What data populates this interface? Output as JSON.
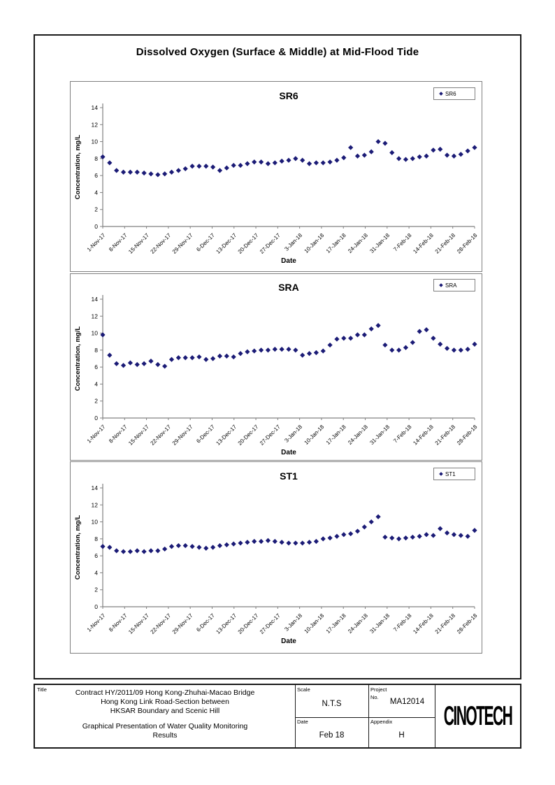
{
  "page": {
    "heading": "Dissolved Oxygen (Surface & Middle) at Mid-Flood Tide"
  },
  "chart_data": [
    {
      "type": "scatter",
      "title": "SR6",
      "legend": "SR6",
      "marker": "diamond",
      "marker_color": "#1b1b76",
      "xlabel": "Date",
      "ylabel": "Concentration, mg/L",
      "ylim": [
        0,
        14
      ],
      "y_ticks": [
        0,
        2,
        4,
        6,
        8,
        10,
        12,
        14
      ],
      "x_tick_labels": [
        "1-Nov-17",
        "8-Nov-17",
        "15-Nov-17",
        "22-Nov-17",
        "29-Nov-17",
        "6-Dec-17",
        "13-Dec-17",
        "20-Dec-17",
        "27-Dec-17",
        "3-Jan-18",
        "10-Jan-18",
        "17-Jan-18",
        "24-Jan-18",
        "31-Jan-18",
        "7-Feb-18",
        "14-Feb-18",
        "21-Feb-18",
        "28-Feb-18"
      ],
      "values": [
        8.2,
        7.5,
        6.6,
        6.4,
        6.4,
        6.4,
        6.3,
        6.2,
        6.1,
        6.2,
        6.4,
        6.6,
        6.8,
        7.1,
        7.1,
        7.1,
        7.0,
        6.6,
        6.9,
        7.2,
        7.2,
        7.4,
        7.6,
        7.6,
        7.4,
        7.5,
        7.7,
        7.8,
        8.0,
        7.8,
        7.4,
        7.5,
        7.5,
        7.6,
        7.8,
        8.1,
        9.3,
        8.3,
        8.4,
        8.8,
        10.0,
        9.8,
        8.7,
        8.0,
        7.9,
        8.0,
        8.2,
        8.3,
        9.0,
        9.1,
        8.4,
        8.3,
        8.5,
        8.9,
        9.3
      ]
    },
    {
      "type": "scatter",
      "title": "SRA",
      "legend": "SRA",
      "marker": "diamond",
      "marker_color": "#1b1b76",
      "xlabel": "Date",
      "ylabel": "Concentration, mg/L",
      "ylim": [
        0,
        14
      ],
      "y_ticks": [
        0,
        2,
        4,
        6,
        8,
        10,
        12,
        14
      ],
      "x_tick_labels": [
        "1-Nov-17",
        "8-Nov-17",
        "15-Nov-17",
        "22-Nov-17",
        "29-Nov-17",
        "6-Dec-17",
        "13-Dec-17",
        "20-Dec-17",
        "27-Dec-17",
        "3-Jan-18",
        "10-Jan-18",
        "17-Jan-18",
        "24-Jan-18",
        "31-Jan-18",
        "7-Feb-18",
        "14-Feb-18",
        "21-Feb-18",
        "28-Feb-18"
      ],
      "values": [
        9.8,
        7.4,
        6.4,
        6.2,
        6.5,
        6.3,
        6.4,
        6.7,
        6.3,
        6.1,
        6.9,
        7.1,
        7.1,
        7.1,
        7.2,
        6.9,
        7.0,
        7.3,
        7.3,
        7.2,
        7.6,
        7.8,
        7.9,
        8.0,
        8.0,
        8.1,
        8.1,
        8.1,
        8.0,
        7.4,
        7.6,
        7.7,
        7.9,
        8.6,
        9.3,
        9.4,
        9.4,
        9.8,
        9.8,
        10.5,
        10.9,
        8.6,
        8.0,
        8.0,
        8.3,
        8.9,
        10.2,
        10.4,
        9.4,
        8.7,
        8.2,
        8.0,
        8.0,
        8.1,
        8.7
      ]
    },
    {
      "type": "scatter",
      "title": "ST1",
      "legend": "ST1",
      "marker": "diamond",
      "marker_color": "#1b1b76",
      "xlabel": "Date",
      "ylabel": "Concentration, mg/L",
      "ylim": [
        0,
        14
      ],
      "y_ticks": [
        0,
        2,
        4,
        6,
        8,
        10,
        12,
        14
      ],
      "x_tick_labels": [
        "1-Nov-17",
        "8-Nov-17",
        "15-Nov-17",
        "22-Nov-17",
        "29-Nov-17",
        "6-Dec-17",
        "13-Dec-17",
        "20-Dec-17",
        "27-Dec-17",
        "3-Jan-18",
        "10-Jan-18",
        "17-Jan-18",
        "24-Jan-18",
        "31-Jan-18",
        "7-Feb-18",
        "14-Feb-18",
        "21-Feb-18",
        "28-Feb-18"
      ],
      "values": [
        7.1,
        7.0,
        6.6,
        6.5,
        6.5,
        6.6,
        6.5,
        6.6,
        6.6,
        6.8,
        7.1,
        7.2,
        7.2,
        7.1,
        7.0,
        6.9,
        7.0,
        7.2,
        7.3,
        7.4,
        7.5,
        7.6,
        7.7,
        7.7,
        7.8,
        7.7,
        7.6,
        7.5,
        7.5,
        7.5,
        7.6,
        7.7,
        8.0,
        8.1,
        8.3,
        8.5,
        8.6,
        8.9,
        9.4,
        10.0,
        10.6,
        8.2,
        8.1,
        8.0,
        8.1,
        8.2,
        8.3,
        8.5,
        8.4,
        9.2,
        8.7,
        8.5,
        8.4,
        8.3,
        9.0
      ]
    }
  ],
  "title_block": {
    "label": "Title",
    "title_lines": [
      "Contract HY/2011/09 Hong Kong-Zhuhai-Macao Bridge",
      "Hong Kong Link Road-Section between",
      "HKSAR Boundary and Scenic Hill"
    ],
    "subtitle_lines": [
      "Graphical Presentation of Water Quality Monitoring",
      "Results"
    ],
    "scale": {
      "label": "Scale",
      "value": "N.T.S"
    },
    "project": {
      "label": "Project",
      "no_label": "No.",
      "value": "MA12014"
    },
    "date": {
      "label": "Date",
      "value": "Feb 18"
    },
    "appendix": {
      "label": "Appendix",
      "value": "H"
    },
    "logo": "CINOTECH"
  },
  "colors": {
    "marker": "#1b1b76",
    "axis": "#808080",
    "chart_border": "#7f7f7f",
    "frame_border": "#1a1a1a"
  }
}
